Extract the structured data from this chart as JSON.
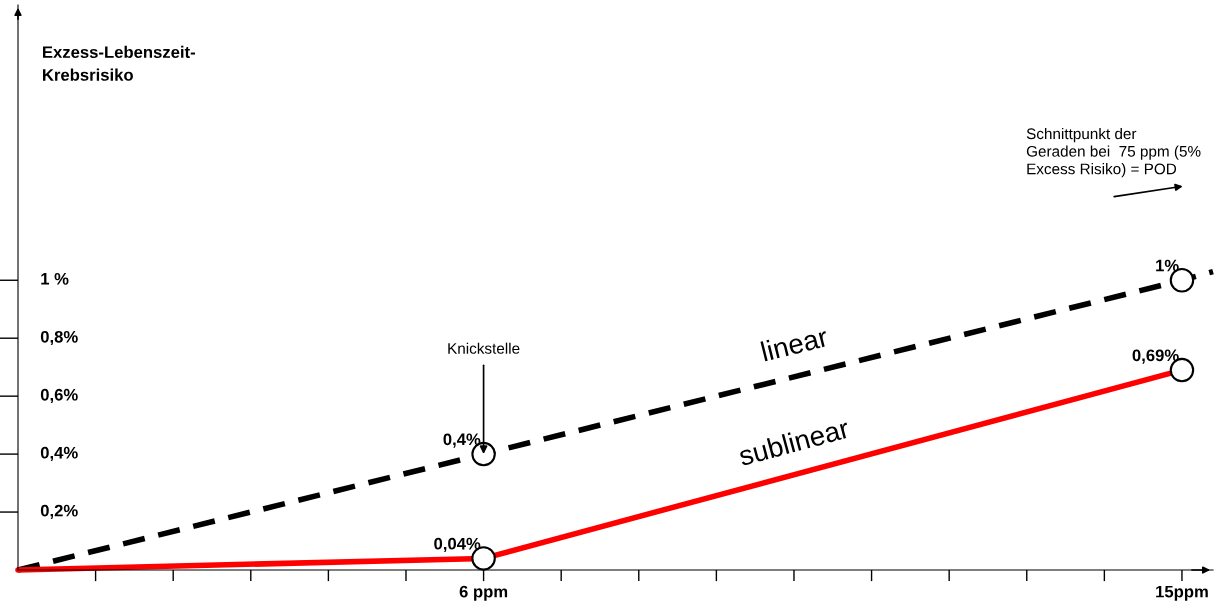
{
  "chart_data": {
    "type": "line",
    "ylabel": "Exzess-Lebenszeit-\nKrebsrisiko",
    "xlim": [
      0,
      15.4
    ],
    "ylim": [
      0,
      1.95
    ],
    "xticks": [
      {
        "value": 1,
        "label": null
      },
      {
        "value": 2,
        "label": null
      },
      {
        "value": 3,
        "label": null
      },
      {
        "value": 4,
        "label": null
      },
      {
        "value": 5,
        "label": null
      },
      {
        "value": 6,
        "label": "6 ppm"
      },
      {
        "value": 7,
        "label": null
      },
      {
        "value": 8,
        "label": null
      },
      {
        "value": 9,
        "label": null
      },
      {
        "value": 10,
        "label": null
      },
      {
        "value": 11,
        "label": null
      },
      {
        "value": 12,
        "label": null
      },
      {
        "value": 13,
        "label": null
      },
      {
        "value": 14,
        "label": null
      },
      {
        "value": 15,
        "label": "15ppm"
      }
    ],
    "yticks": [
      {
        "value": 0.2,
        "label": "0,2%"
      },
      {
        "value": 0.4,
        "label": "0,4%"
      },
      {
        "value": 0.6,
        "label": "0,6%"
      },
      {
        "value": 0.8,
        "label": "0,8%"
      },
      {
        "value": 1,
        "label": "1 %"
      }
    ],
    "grid": false,
    "legend": false,
    "series": [
      {
        "name": "linear",
        "type": "line",
        "line_style": "dashed",
        "marker": "none",
        "color": "#000000",
        "x": [
          0,
          6,
          15,
          15.4
        ],
        "values": [
          0,
          0.4,
          1,
          1.03
        ]
      },
      {
        "name": "sublinear",
        "type": "line",
        "line_style": "solid",
        "marker": "none",
        "color": "#ff0000",
        "x": [
          0,
          6,
          15
        ],
        "values": [
          0,
          0.04,
          0.69
        ]
      },
      {
        "type": "scatter",
        "marker": "circle",
        "color": "#000000",
        "x": [
          6,
          15,
          6,
          15
        ],
        "values": [
          0.4,
          1,
          0.04,
          0.69
        ],
        "value_labels": [
          "0,4%",
          "1%",
          "0,04%",
          "0,69%"
        ]
      }
    ],
    "annotations": [
      {
        "text": "Knickstelle",
        "x": 6,
        "y": 0.4
      },
      "Schnittpunkt der\nGeraden bei  75 ppm (5%\nExcess Risiko) = POD"
    ]
  }
}
